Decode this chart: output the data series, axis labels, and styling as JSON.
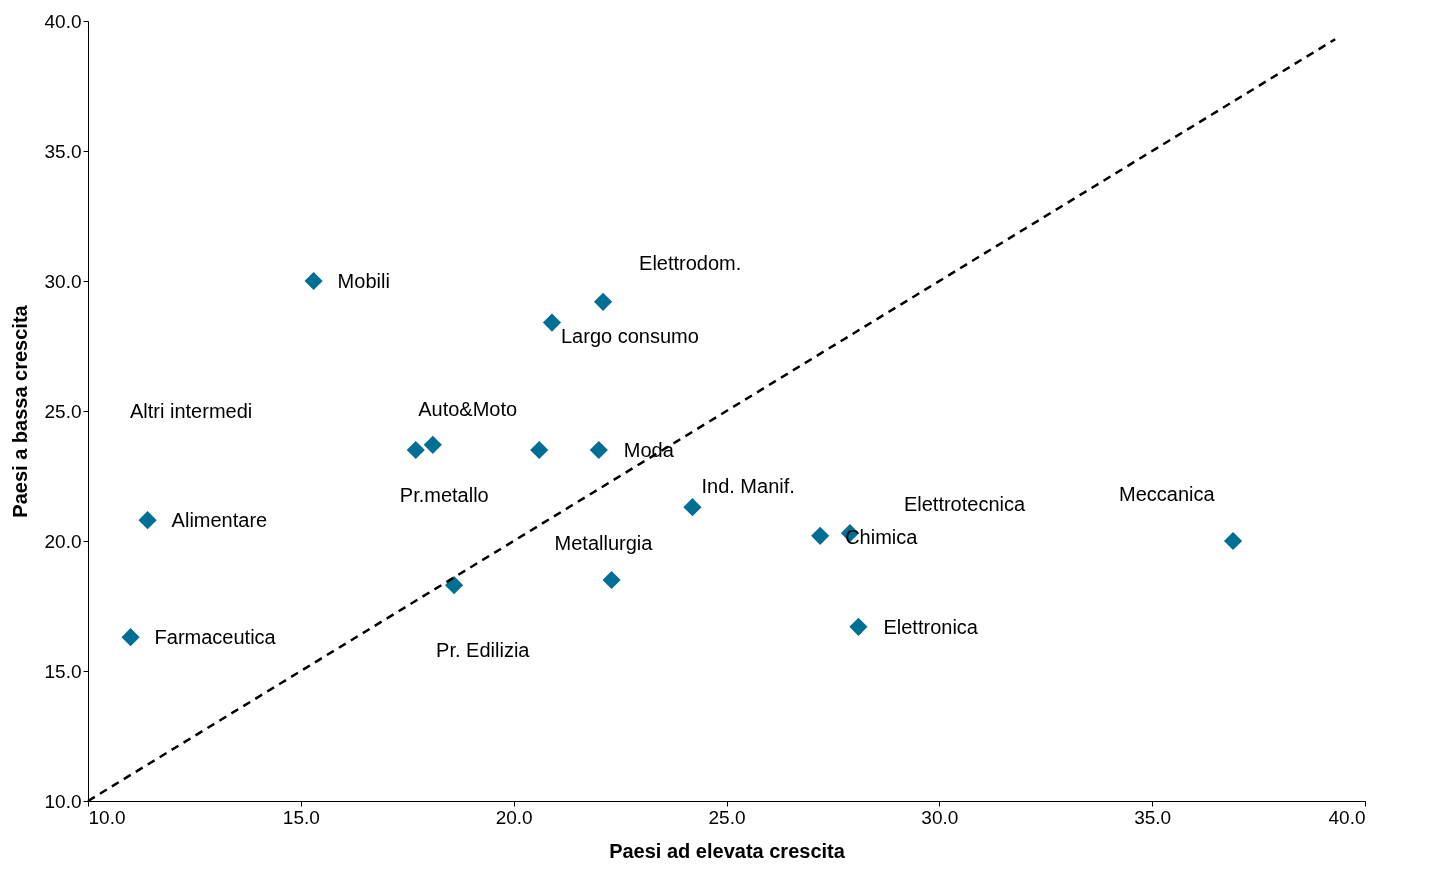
{
  "chart_data": {
    "type": "scatter",
    "xlabel": "Paesi ad elevata crescita",
    "ylabel": "Paesi a bassa crescita",
    "marker": "diamond",
    "grid": false,
    "xlim": [
      10,
      40
    ],
    "ylim": [
      10,
      40
    ],
    "xticks": [
      {
        "value": 10,
        "label": "10.0"
      },
      {
        "value": 15,
        "label": "15.0"
      },
      {
        "value": 20,
        "label": "20.0"
      },
      {
        "value": 25,
        "label": "25.0"
      },
      {
        "value": 30,
        "label": "30.0"
      },
      {
        "value": 35,
        "label": "35.0"
      },
      {
        "value": 40,
        "label": "40.0"
      }
    ],
    "yticks": [
      {
        "value": 10,
        "label": "10.0"
      },
      {
        "value": 15,
        "label": "15.0"
      },
      {
        "value": 20,
        "label": "20.0"
      },
      {
        "value": 25,
        "label": "25.0"
      },
      {
        "value": 30,
        "label": "30.0"
      },
      {
        "value": 35,
        "label": "35.0"
      },
      {
        "value": 40,
        "label": "40.0"
      }
    ],
    "series": [
      {
        "color": "#006f93",
        "x": [
          15.3,
          22.1,
          20.9,
          17.7,
          18.1,
          20.6,
          22.0,
          24.2,
          27.2,
          27.9,
          36.9,
          11.4,
          11.0,
          18.6,
          22.3,
          28.1
        ],
        "values": [
          30.0,
          29.2,
          28.4,
          23.5,
          23.7,
          23.5,
          23.5,
          21.3,
          20.2,
          20.3,
          20.0,
          20.8,
          16.3,
          18.3,
          18.5,
          16.7
        ]
      },
      {
        "type": "line",
        "color": "#000000",
        "line_style": "dashed",
        "marker": "none",
        "x": [
          10,
          39.3
        ],
        "values": [
          10,
          39.3
        ]
      }
    ],
    "annotations": [
      {
        "text": "Mobili",
        "x": 15.3,
        "y": 30.0
      },
      {
        "text": "Elettrodom.",
        "x": 22.1,
        "y": 29.2
      },
      {
        "text": "Largo consumo",
        "x": 20.9,
        "y": 28.4
      },
      "Altri intermedi",
      {
        "text": "Auto&Moto",
        "x": 20.6,
        "y": 23.5
      },
      {
        "text": "Moda",
        "x": 22.0,
        "y": 23.5
      },
      {
        "text": "Pr.metallo",
        "x": 18.1,
        "y": 23.7
      },
      {
        "text": "Ind. Manif.",
        "x": 24.2,
        "y": 21.3
      },
      {
        "text": "Elettrotecnica",
        "x": 27.9,
        "y": 20.3
      },
      {
        "text": "Meccanica",
        "x": 36.9,
        "y": 20.0
      },
      {
        "text": "Alimentare",
        "x": 11.4,
        "y": 20.8
      },
      {
        "text": "Chimica",
        "x": 27.2,
        "y": 20.2
      },
      {
        "text": "Metallurgia",
        "x": 22.3,
        "y": 18.5
      },
      {
        "text": "Elettronica",
        "x": 28.1,
        "y": 16.7
      },
      {
        "text": "Farmaceutica",
        "x": 11.0,
        "y": 16.3
      },
      {
        "text": "Pr. Edilizia",
        "x": 18.6,
        "y": 18.3
      }
    ]
  }
}
